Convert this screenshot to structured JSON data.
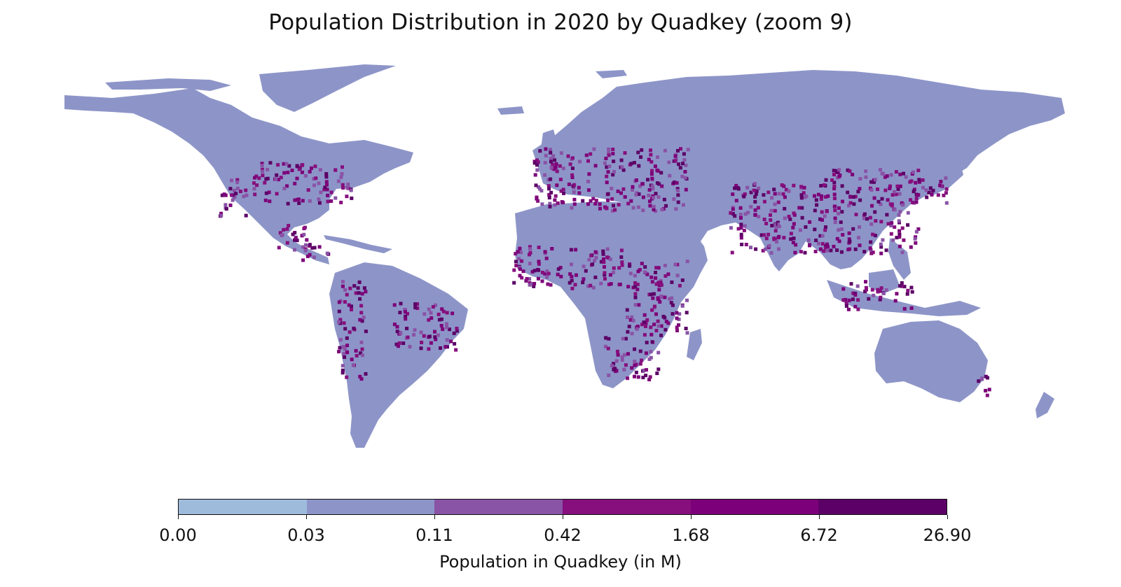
{
  "title": "Population Distribution in 2020 by Quadkey (zoom 9)",
  "colorbar": {
    "label": "Population in Quadkey (in M)",
    "ticks": [
      "0.00",
      "0.03",
      "0.11",
      "0.42",
      "1.68",
      "6.72",
      "26.90"
    ],
    "colors": [
      "#9ebbdc",
      "#8d95c8",
      "#8953a6",
      "#860f7d",
      "#7c0079",
      "#5c0067"
    ]
  },
  "map": {
    "land_color": "#8d95c8",
    "dense_colors": [
      "#8953a6",
      "#860f7d",
      "#7c0079",
      "#5c0067"
    ]
  }
}
